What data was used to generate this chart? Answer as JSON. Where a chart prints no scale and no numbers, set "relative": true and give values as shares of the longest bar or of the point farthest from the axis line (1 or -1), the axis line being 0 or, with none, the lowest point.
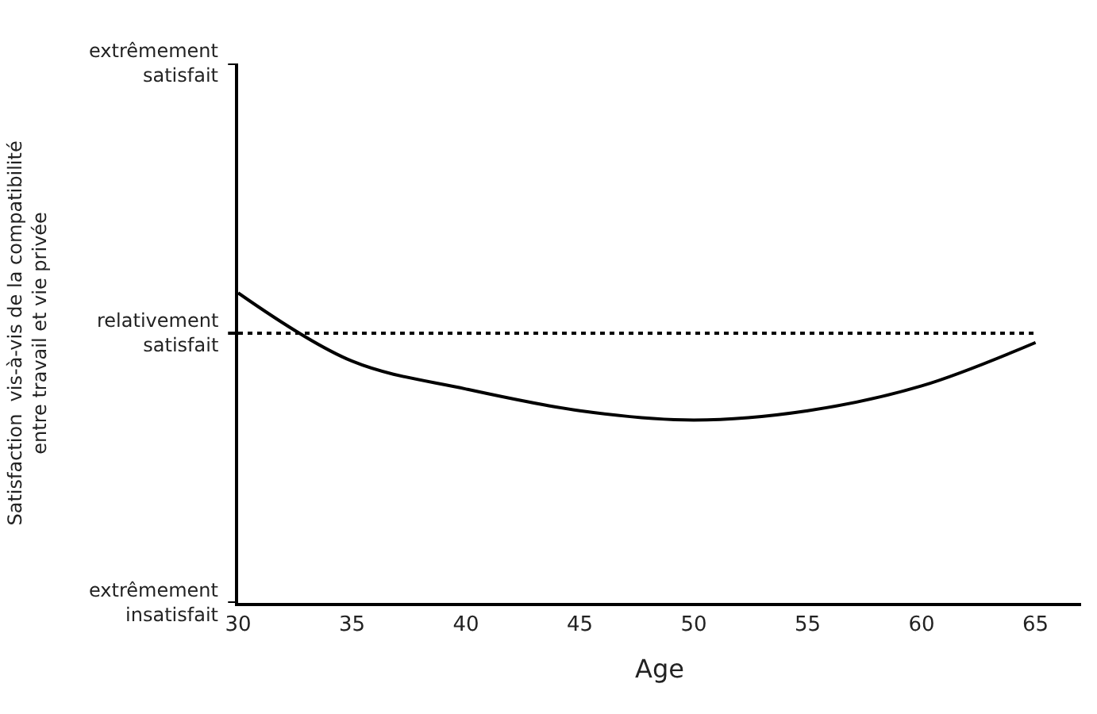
{
  "chart_data": {
    "type": "line",
    "relative": true,
    "xlabel": "Age",
    "x": [
      30,
      35,
      40,
      45,
      50,
      55,
      60,
      65
    ],
    "series": [
      {
        "color": "#000000",
        "values": [
          1.0,
          0.78,
          0.69,
          0.62,
          0.59,
          0.62,
          0.7,
          0.84
        ]
      }
    ],
    "xlim": [
      30,
      67
    ],
    "xticks": [
      30,
      35,
      40,
      45,
      50,
      55,
      60,
      65
    ],
    "annotations": [
      "extrêmement\nsatisfait",
      "relativement\nsatisfait",
      "extrêmement\ninsatisfait",
      "Satisfaction  vis-à-vis de la compatibilité\nentre travail et vie privée"
    ],
    "ref_lines": [
      {
        "axis": "y",
        "value": 0.87,
        "label": null,
        "color": "#000000",
        "line_style": "dotted"
      }
    ],
    "marker": "none",
    "line_style": "solid",
    "legend": false
  }
}
